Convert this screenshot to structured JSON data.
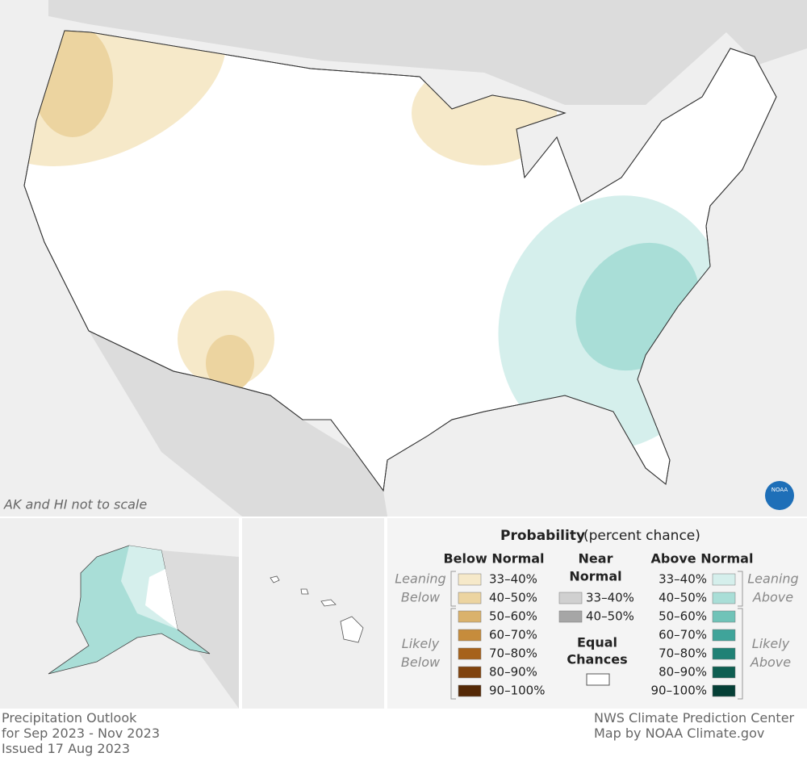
{
  "map": {
    "note": "AK and HI not to scale",
    "logo": "NOAA"
  },
  "legend": {
    "title": "Probability",
    "subtitle": "(percent chance)",
    "below": {
      "header": "Below Normal",
      "leaning": [
        "Leaning",
        "Below"
      ],
      "likely": [
        "Likely",
        "Below"
      ],
      "entries": [
        {
          "label": "33–40%",
          "color": "#f6e9c9"
        },
        {
          "label": "40–50%",
          "color": "#ecd4a0"
        },
        {
          "label": "50–60%",
          "color": "#dab26c"
        },
        {
          "label": "60–70%",
          "color": "#c68c3c"
        },
        {
          "label": "70–80%",
          "color": "#a6621b"
        },
        {
          "label": "80–90%",
          "color": "#80430e"
        },
        {
          "label": "90–100%",
          "color": "#552906"
        }
      ]
    },
    "near": {
      "header": [
        "Near",
        "Normal"
      ],
      "entries": [
        {
          "label": "33–40%",
          "color": "#d0d0d0"
        },
        {
          "label": "40–50%",
          "color": "#a6a6a6"
        }
      ]
    },
    "equal": {
      "header": [
        "Equal",
        "Chances"
      ],
      "color": "#ffffff"
    },
    "above": {
      "header": "Above Normal",
      "leaning": [
        "Leaning",
        "Above"
      ],
      "likely": [
        "Likely",
        "Above"
      ],
      "entries": [
        {
          "label": "33–40%",
          "color": "#d5efec"
        },
        {
          "label": "40–50%",
          "color": "#a9ded7"
        },
        {
          "label": "50–60%",
          "color": "#70c3b8"
        },
        {
          "label": "60–70%",
          "color": "#3fa49a"
        },
        {
          "label": "70–80%",
          "color": "#1f8175"
        },
        {
          "label": "80–90%",
          "color": "#0e5e51"
        },
        {
          "label": "90–100%",
          "color": "#053f36"
        }
      ]
    }
  },
  "footer": {
    "left": [
      "Precipitation Outlook",
      "for Sep 2023 - Nov 2023",
      "Issued 17 Aug 2023"
    ],
    "right": [
      "NWS Climate Prediction Center",
      "Map by NOAA Climate.gov"
    ]
  }
}
